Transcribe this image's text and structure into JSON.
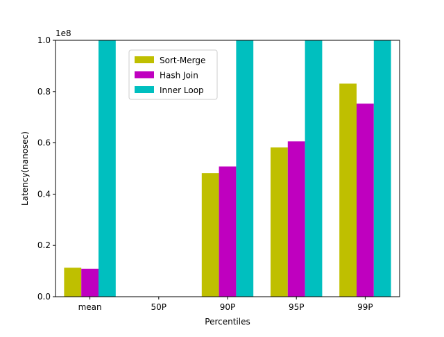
{
  "chart_data": {
    "type": "bar",
    "title": "",
    "xlabel": "Percentiles",
    "ylabel": "Latency(nanosec)",
    "offset_label": "1e8",
    "categories": [
      "mean",
      "50P",
      "90P",
      "95P",
      "99P"
    ],
    "ylim": [
      0,
      1.0
    ],
    "y_ticks": [
      "0.0",
      "0.2",
      "0.4",
      "0.6",
      "0.8",
      "1.0"
    ],
    "y_scale_note": "values in units of 1e8 nanoseconds",
    "series": [
      {
        "name": "Sort-Merge",
        "color": "#bfbf00",
        "values": [
          0.113,
          0,
          0.482,
          0.582,
          0.831
        ]
      },
      {
        "name": "Hash Join",
        "color": "#bf00bf",
        "values": [
          0.109,
          0,
          0.508,
          0.606,
          0.753
        ]
      },
      {
        "name": "Inner Loop",
        "color": "#00bfbf",
        "values": [
          1.0,
          0,
          1.0,
          1.0,
          1.0
        ]
      }
    ],
    "legend": {
      "position": "upper-left inside plot"
    },
    "grid": false
  }
}
